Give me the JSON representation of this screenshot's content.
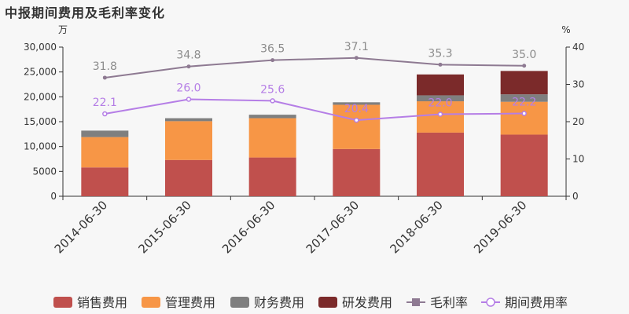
{
  "title": "中报期间费用及毛利率变化",
  "chart_data": {
    "type": "bar",
    "stacked": true,
    "categories": [
      "2014-06-30",
      "2015-06-30",
      "2016-06-30",
      "2017-06-30",
      "2018-06-30",
      "2019-06-30"
    ],
    "y_left": {
      "unit": "万",
      "ylim": [
        0,
        30000
      ],
      "ticks": [
        0,
        5000,
        10000,
        15000,
        20000,
        25000,
        30000
      ],
      "tick_labels": [
        "0",
        "5000",
        "10,000",
        "15,000",
        "20,000",
        "25,000",
        "30,000"
      ]
    },
    "y_right": {
      "unit": "%",
      "ylim": [
        0,
        40
      ],
      "ticks": [
        0,
        10,
        20,
        30,
        40
      ],
      "tick_labels": [
        "0",
        "10",
        "20",
        "30",
        "40"
      ]
    },
    "series": [
      {
        "name": "销售费用",
        "kind": "bar",
        "axis": "left",
        "color": "#c0504d",
        "values": [
          5800,
          7300,
          7800,
          9500,
          12800,
          12400
        ]
      },
      {
        "name": "管理费用",
        "kind": "bar",
        "axis": "left",
        "color": "#f79646",
        "values": [
          6100,
          7800,
          7900,
          8900,
          6300,
          6600
        ]
      },
      {
        "name": "财务费用",
        "kind": "bar",
        "axis": "left",
        "color": "#7f7f7f",
        "values": [
          1300,
          600,
          700,
          500,
          1200,
          1500
        ]
      },
      {
        "name": "研发费用",
        "kind": "bar",
        "axis": "left",
        "color": "#7b2a2a",
        "values": [
          0,
          0,
          0,
          0,
          4200,
          4700
        ]
      },
      {
        "name": "毛利率",
        "kind": "line",
        "axis": "right",
        "color": "#8e7a92",
        "values": [
          31.8,
          34.8,
          36.5,
          37.1,
          35.3,
          35.0
        ],
        "labels": [
          "31.8",
          "34.8",
          "36.5",
          "37.1",
          "35.3",
          "35.0"
        ]
      },
      {
        "name": "期间费用率",
        "kind": "line",
        "axis": "right",
        "color": "#b57ee6",
        "values": [
          22.1,
          26.0,
          25.6,
          20.4,
          22.0,
          22.2
        ],
        "labels": [
          "22.1",
          "26.0",
          "25.6",
          "20.4",
          "22.0",
          "22.2"
        ]
      }
    ],
    "legend_position": "bottom",
    "grid": false
  }
}
